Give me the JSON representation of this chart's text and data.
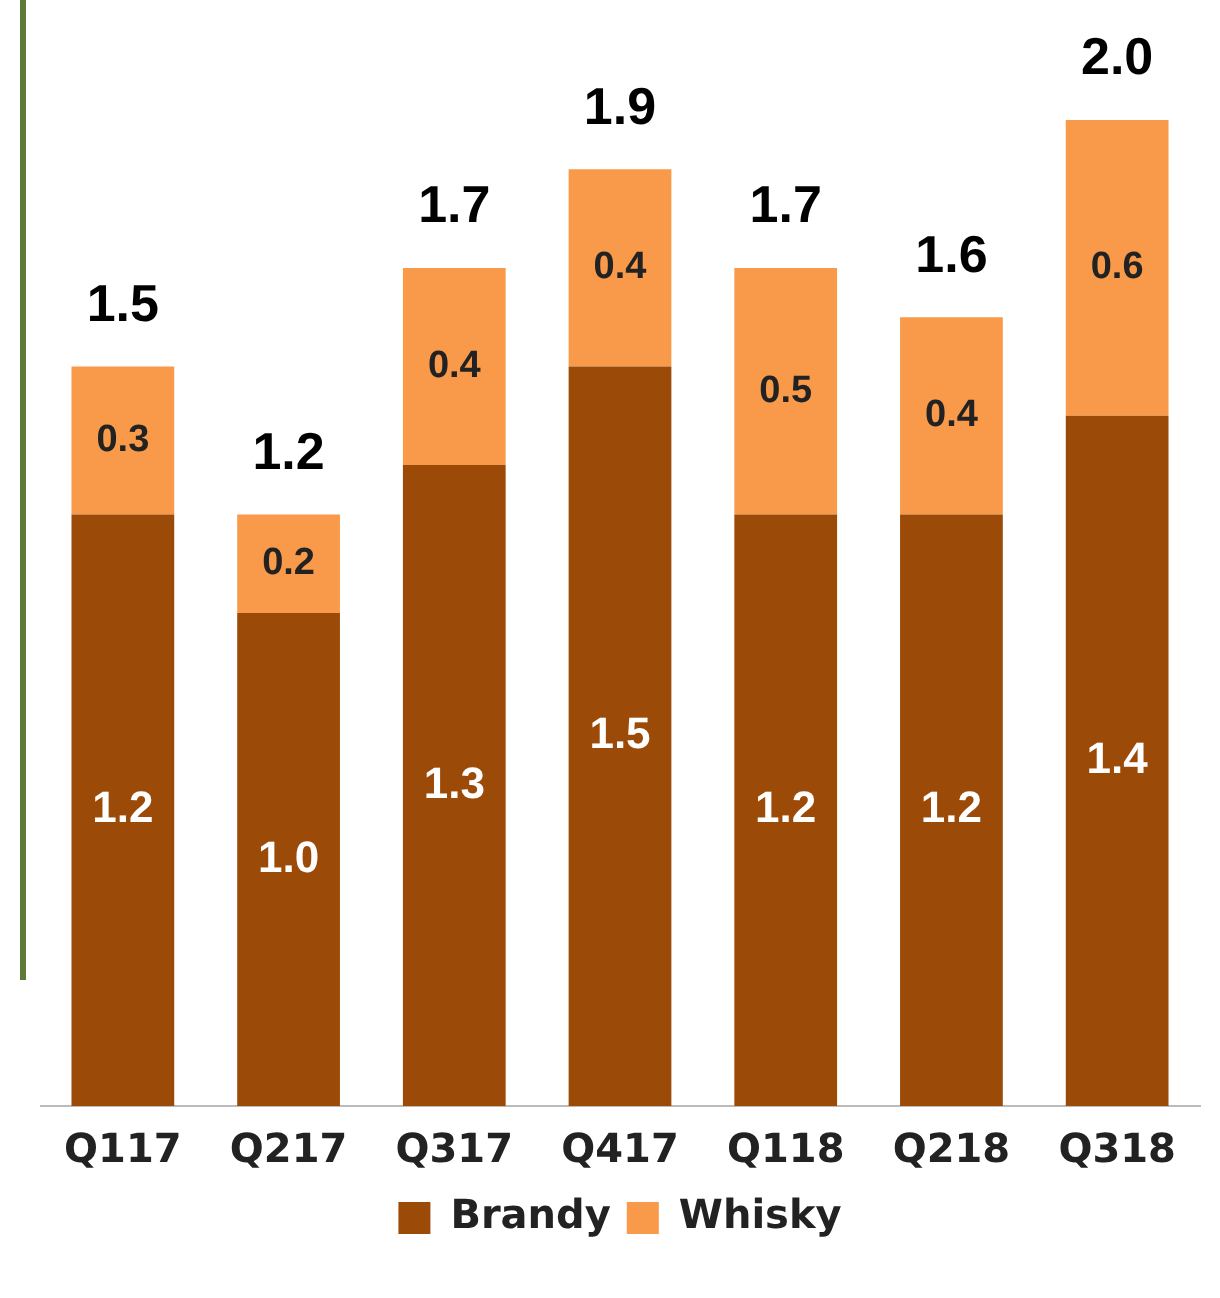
{
  "chart_data": {
    "type": "bar",
    "stacked": true,
    "categories": [
      "Q117",
      "Q217",
      "Q317",
      "Q417",
      "Q118",
      "Q218",
      "Q318"
    ],
    "series": [
      {
        "name": "Brandy",
        "color": "#9c4a08",
        "values": [
          1.2,
          1.0,
          1.3,
          1.5,
          1.2,
          1.2,
          1.4
        ],
        "value_labels": [
          "1.2",
          "1.0",
          "1.3",
          "1.5",
          "1.2",
          "1.2",
          "1.4"
        ]
      },
      {
        "name": "Whisky",
        "color": "#f89a4a",
        "values": [
          0.3,
          0.2,
          0.4,
          0.4,
          0.5,
          0.4,
          0.6
        ],
        "value_labels": [
          "0.3",
          "0.2",
          "0.4",
          "0.4",
          "0.5",
          "0.4",
          "0.6"
        ]
      }
    ],
    "totals": [
      "1.5",
      "1.2",
      "1.7",
      "1.9",
      "1.7",
      "1.6",
      "2.0"
    ],
    "legend": "bottom",
    "grid": false,
    "tick_labels": "x"
  }
}
